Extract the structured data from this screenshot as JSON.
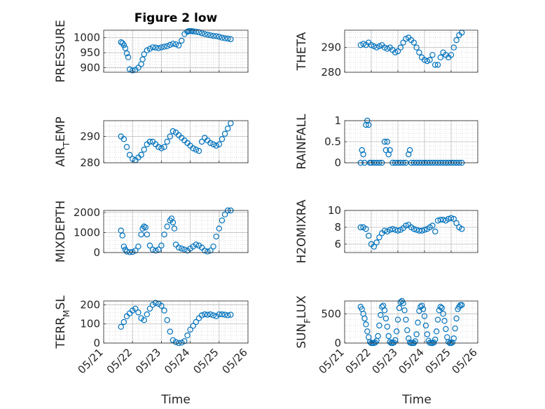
{
  "figure": {
    "title": "Figure 2 low",
    "marker_color": "#0072BD",
    "grid": "on (major + minor, dotted)"
  },
  "chart_data": [
    {
      "type": "scatter",
      "ylabel": "PRESSURE",
      "ylim": [
        885,
        1025
      ],
      "yticks": [
        900,
        950,
        1000
      ],
      "xlim": [
        0,
        5
      ],
      "x": [
        0.6,
        0.65,
        0.7,
        0.75,
        0.8,
        0.85,
        0.9,
        1.0,
        1.1,
        1.2,
        1.3,
        1.35,
        1.4,
        1.5,
        1.6,
        1.7,
        1.8,
        1.9,
        2.0,
        2.1,
        2.2,
        2.3,
        2.4,
        2.5,
        2.6,
        2.7,
        2.8,
        2.9,
        2.95,
        3.0,
        3.05,
        3.1,
        3.2,
        3.3,
        3.4,
        3.5,
        3.6,
        3.7,
        3.8,
        3.9,
        4.0,
        4.1,
        4.2,
        4.3,
        4.4
      ],
      "y": [
        985,
        982,
        975,
        965,
        948,
        935,
        895,
        891,
        893,
        900,
        912,
        928,
        945,
        958,
        963,
        968,
        967,
        965,
        968,
        970,
        972,
        976,
        980,
        978,
        974,
        990,
        1012,
        1020,
        1022,
        1022,
        1022,
        1021,
        1020,
        1018,
        1015,
        1012,
        1010,
        1008,
        1006,
        1005,
        1003,
        1000,
        998,
        997,
        995
      ]
    },
    {
      "type": "scatter",
      "ylabel": "THETA",
      "ylim": [
        280,
        297
      ],
      "yticks": [
        280,
        290
      ],
      "xlim": [
        0,
        5
      ],
      "x": [
        0.6,
        0.7,
        0.8,
        0.9,
        1.0,
        1.1,
        1.2,
        1.3,
        1.4,
        1.5,
        1.6,
        1.7,
        1.8,
        1.9,
        2.0,
        2.1,
        2.2,
        2.3,
        2.4,
        2.5,
        2.6,
        2.7,
        2.8,
        2.9,
        3.0,
        3.1,
        3.2,
        3.3,
        3.4,
        3.5,
        3.6,
        3.7,
        3.8,
        3.9,
        4.0,
        4.1,
        4.2,
        4.3,
        4.4
      ],
      "y": [
        291,
        291.5,
        291,
        292,
        291,
        290.5,
        290,
        290.5,
        291,
        290,
        289.5,
        290,
        289,
        288,
        288.5,
        290,
        292,
        293.5,
        294,
        293,
        292,
        290,
        288,
        286,
        285,
        284.5,
        285,
        287,
        283,
        283,
        286,
        288,
        287,
        286,
        287,
        290,
        293,
        295,
        296
      ]
    },
    {
      "type": "scatter",
      "ylabel": "AIR_TEMP",
      "ylim": [
        280,
        296
      ],
      "yticks": [
        280,
        290
      ],
      "xlim": [
        0,
        5
      ],
      "x": [
        0.6,
        0.7,
        0.8,
        0.9,
        1.0,
        1.1,
        1.2,
        1.3,
        1.4,
        1.5,
        1.6,
        1.7,
        1.8,
        1.9,
        2.0,
        2.1,
        2.2,
        2.3,
        2.4,
        2.5,
        2.6,
        2.7,
        2.8,
        2.9,
        3.0,
        3.1,
        3.2,
        3.3,
        3.4,
        3.5,
        3.6,
        3.7,
        3.8,
        3.9,
        4.0,
        4.1,
        4.2,
        4.3,
        4.4
      ],
      "y": [
        290,
        289,
        286,
        283,
        281.5,
        281,
        282,
        283,
        285,
        287,
        288,
        288,
        287,
        286,
        285.5,
        286,
        288,
        290,
        292,
        291.5,
        290.5,
        289.5,
        288.5,
        287.5,
        286.5,
        285.5,
        285,
        284.5,
        288,
        289.5,
        288.5,
        287.5,
        287,
        286.5,
        287,
        289,
        291,
        293,
        295
      ]
    },
    {
      "type": "scatter",
      "ylabel": "RAINFALL",
      "ylim": [
        0,
        1
      ],
      "yticks": [
        0,
        0.5,
        1
      ],
      "xlim": [
        0,
        5
      ],
      "x": [
        0.6,
        0.65,
        0.7,
        0.75,
        0.8,
        0.85,
        0.9,
        0.95,
        1.0,
        1.1,
        1.2,
        1.3,
        1.4,
        1.5,
        1.55,
        1.6,
        1.65,
        1.7,
        1.8,
        1.9,
        2.0,
        2.1,
        2.2,
        2.3,
        2.4,
        2.45,
        2.5,
        2.6,
        2.7,
        2.8,
        2.9,
        3.0,
        3.1,
        3.2,
        3.3,
        3.4,
        3.5,
        3.6,
        3.7,
        3.8,
        3.9,
        4.0,
        4.1,
        4.2,
        4.3,
        4.4
      ],
      "y": [
        0,
        0.3,
        0.2,
        0,
        0.9,
        1.0,
        0.9,
        0,
        0,
        0,
        0,
        0,
        0,
        0.5,
        0.3,
        0.5,
        0.2,
        0.3,
        0,
        0,
        0,
        0,
        0,
        0,
        0.2,
        0.3,
        0,
        0,
        0,
        0,
        0,
        0,
        0,
        0,
        0,
        0,
        0,
        0,
        0,
        0,
        0,
        0,
        0,
        0,
        0,
        0
      ]
    },
    {
      "type": "scatter",
      "ylabel": "MIXDEPTH",
      "ylim": [
        0,
        2100
      ],
      "yticks": [
        0,
        1000,
        2000
      ],
      "xlim": [
        0,
        5
      ],
      "x": [
        0.6,
        0.65,
        0.7,
        0.75,
        0.8,
        0.9,
        1.0,
        1.1,
        1.2,
        1.3,
        1.35,
        1.4,
        1.45,
        1.5,
        1.6,
        1.7,
        1.8,
        1.9,
        2.0,
        2.1,
        2.2,
        2.3,
        2.35,
        2.4,
        2.45,
        2.5,
        2.6,
        2.7,
        2.8,
        2.9,
        3.0,
        3.1,
        3.2,
        3.3,
        3.4,
        3.5,
        3.6,
        3.7,
        3.8,
        3.9,
        4.0,
        4.1,
        4.2,
        4.3,
        4.4
      ],
      "y": [
        1100,
        850,
        300,
        150,
        50,
        20,
        30,
        100,
        300,
        900,
        1200,
        1300,
        1250,
        900,
        350,
        150,
        100,
        150,
        350,
        900,
        1300,
        1600,
        1700,
        1500,
        1200,
        400,
        250,
        200,
        150,
        100,
        200,
        300,
        400,
        350,
        250,
        100,
        50,
        100,
        300,
        800,
        1200,
        1600,
        1900,
        2100,
        2100
      ]
    },
    {
      "type": "scatter",
      "ylabel": "H2OMIXRA",
      "ylim": [
        5,
        10
      ],
      "yticks": [
        6,
        8,
        10
      ],
      "xlim": [
        0,
        5
      ],
      "x": [
        0.6,
        0.7,
        0.8,
        0.9,
        1.0,
        1.1,
        1.2,
        1.3,
        1.4,
        1.5,
        1.6,
        1.7,
        1.8,
        1.9,
        2.0,
        2.1,
        2.2,
        2.3,
        2.4,
        2.5,
        2.6,
        2.7,
        2.8,
        2.9,
        3.0,
        3.1,
        3.2,
        3.3,
        3.4,
        3.5,
        3.6,
        3.7,
        3.8,
        3.9,
        4.0,
        4.1,
        4.2,
        4.3,
        4.4
      ],
      "y": [
        8,
        8,
        7.8,
        7,
        6,
        5.7,
        6.2,
        6.8,
        7.3,
        7.6,
        7.5,
        7.7,
        7.8,
        7.7,
        7.6,
        7.7,
        7.9,
        8.2,
        8.3,
        8,
        7.8,
        7.7,
        7.6,
        7.6,
        7.7,
        7.8,
        8,
        8.2,
        7.5,
        8.8,
        8.9,
        8.9,
        8.8,
        9,
        9.1,
        9,
        8.5,
        8,
        7.8
      ]
    },
    {
      "type": "scatter",
      "ylabel": "TERR_MSL",
      "ylim": [
        0,
        220
      ],
      "yticks": [
        0,
        100,
        200
      ],
      "xlim": [
        0,
        5
      ],
      "x": [
        0.6,
        0.7,
        0.8,
        0.9,
        1.0,
        1.1,
        1.2,
        1.3,
        1.4,
        1.5,
        1.6,
        1.7,
        1.8,
        1.9,
        2.0,
        2.1,
        2.2,
        2.3,
        2.4,
        2.5,
        2.6,
        2.7,
        2.8,
        2.9,
        3.0,
        3.1,
        3.2,
        3.3,
        3.4,
        3.5,
        3.6,
        3.7,
        3.8,
        3.9,
        4.0,
        4.1,
        4.2,
        4.3,
        4.4
      ],
      "y": [
        85,
        110,
        140,
        155,
        170,
        180,
        160,
        130,
        120,
        150,
        180,
        200,
        210,
        205,
        195,
        170,
        120,
        60,
        15,
        5,
        0,
        2,
        10,
        40,
        70,
        90,
        110,
        130,
        145,
        150,
        148,
        150,
        145,
        140,
        150,
        150,
        148,
        145,
        148
      ]
    },
    {
      "type": "scatter",
      "ylabel": "SUN_FLUX",
      "ylim": [
        0,
        720
      ],
      "yticks": [
        0,
        500
      ],
      "xlim": [
        0,
        5
      ],
      "x": [
        0.6,
        0.65,
        0.7,
        0.75,
        0.8,
        0.85,
        0.9,
        0.95,
        1.0,
        1.05,
        1.1,
        1.15,
        1.2,
        1.25,
        1.3,
        1.35,
        1.4,
        1.45,
        1.5,
        1.55,
        1.6,
        1.65,
        1.7,
        1.75,
        1.8,
        1.85,
        1.9,
        1.95,
        2.0,
        2.05,
        2.1,
        2.15,
        2.2,
        2.25,
        2.3,
        2.35,
        2.4,
        2.45,
        2.5,
        2.55,
        2.6,
        2.65,
        2.7,
        2.75,
        2.8,
        2.85,
        2.9,
        2.95,
        3.0,
        3.05,
        3.1,
        3.15,
        3.2,
        3.25,
        3.3,
        3.35,
        3.4,
        3.45,
        3.5,
        3.55,
        3.6,
        3.65,
        3.7,
        3.75,
        3.8,
        3.85,
        3.9,
        3.95,
        4.0,
        4.05,
        4.1,
        4.15,
        4.2,
        4.25,
        4.3,
        4.35,
        4.4
      ],
      "y": [
        620,
        580,
        500,
        420,
        320,
        200,
        100,
        20,
        0,
        0,
        0,
        10,
        40,
        120,
        300,
        480,
        620,
        640,
        560,
        420,
        280,
        120,
        20,
        0,
        0,
        10,
        50,
        200,
        400,
        600,
        700,
        720,
        680,
        560,
        400,
        220,
        80,
        10,
        0,
        0,
        0,
        30,
        150,
        350,
        550,
        620,
        640,
        580,
        460,
        300,
        150,
        40,
        5,
        0,
        0,
        10,
        60,
        200,
        400,
        560,
        620,
        600,
        500,
        380,
        240,
        100,
        20,
        0,
        0,
        10,
        80,
        250,
        420,
        580,
        620,
        650,
        650
      ]
    }
  ],
  "x_axis": {
    "tick_labels": [
      "05/21",
      "05/22",
      "05/23",
      "05/24",
      "05/25",
      "05/26"
    ],
    "label": "Time"
  }
}
